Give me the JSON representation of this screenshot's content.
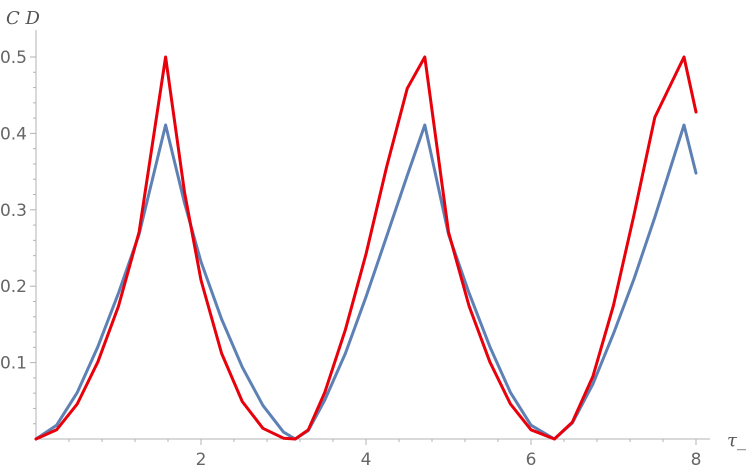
{
  "chart_data": {
    "type": "line",
    "title": "",
    "xlabel": "τ_",
    "ylabel": "C D",
    "xlim": [
      0,
      8
    ],
    "ylim": [
      0,
      0.5
    ],
    "xticks": [
      2,
      4,
      6,
      8
    ],
    "yticks": [
      0.1,
      0.2,
      0.3,
      0.4,
      0.5
    ],
    "xtick_labels": [
      "2",
      "4",
      "6",
      "8"
    ],
    "ytick_labels": [
      "0.1",
      "0.2",
      "0.3",
      "0.4",
      "0.5"
    ],
    "grid": false,
    "legend": "none",
    "series": [
      {
        "color": "#5e81b5",
        "x": [
          0,
          0.25,
          0.5,
          0.75,
          1.0,
          1.25,
          1.5708,
          1.8,
          2.0,
          2.25,
          2.5,
          2.75,
          3.0,
          3.1416,
          3.3,
          3.5,
          3.75,
          4.0,
          4.25,
          4.5,
          4.7124,
          5.0,
          5.25,
          5.5,
          5.75,
          6.0,
          6.2832,
          6.5,
          6.75,
          7.0,
          7.25,
          7.5,
          7.854,
          8.0
        ],
        "y": [
          0,
          0.018,
          0.061,
          0.121,
          0.191,
          0.268,
          0.411,
          0.309,
          0.232,
          0.157,
          0.094,
          0.044,
          0.009,
          0,
          0.011,
          0.051,
          0.112,
          0.186,
          0.265,
          0.345,
          0.411,
          0.268,
          0.191,
          0.121,
          0.061,
          0.018,
          0,
          0.021,
          0.072,
          0.138,
          0.21,
          0.29,
          0.411,
          0.348
        ]
      },
      {
        "color": "#e8000b",
        "x": [
          0,
          0.25,
          0.5,
          0.75,
          1.0,
          1.25,
          1.5708,
          1.8,
          2.0,
          2.25,
          2.5,
          2.75,
          3.0,
          3.1416,
          3.3,
          3.5,
          3.75,
          4.0,
          4.25,
          4.5,
          4.7124,
          5.0,
          5.25,
          5.5,
          5.75,
          6.0,
          6.2832,
          6.5,
          6.75,
          7.0,
          7.25,
          7.5,
          7.854,
          8.0
        ],
        "y": [
          0,
          0.012,
          0.046,
          0.101,
          0.174,
          0.271,
          0.5,
          0.323,
          0.208,
          0.112,
          0.049,
          0.014,
          0.001,
          0,
          0.012,
          0.061,
          0.143,
          0.242,
          0.356,
          0.459,
          0.5,
          0.271,
          0.174,
          0.101,
          0.046,
          0.012,
          0,
          0.022,
          0.082,
          0.175,
          0.294,
          0.421,
          0.5,
          0.428
        ]
      }
    ]
  }
}
